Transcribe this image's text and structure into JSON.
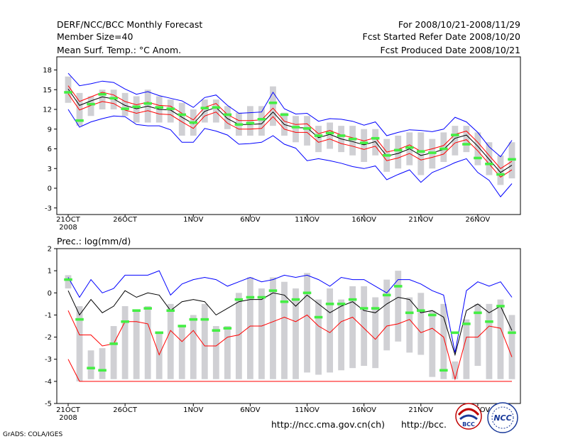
{
  "header": {
    "title": "DERF/NCC/BCC Monthly Forecast",
    "member_size": "Member Size=40",
    "variable": "Mean Surf. Temp.: °C Anom.",
    "forecast_range": "For 2008/10/21-2008/11/29",
    "started_refer_date": "Fcst Started Refer Date 2008/10/20",
    "produced_date": "Fcst Produced Date 2008/10/21"
  },
  "footer": {
    "grads_credit": "GrADS: COLA/IGES",
    "url_ncc": "http://ncc.cma.gov.cn(ch)",
    "url_bcc": "http://bcc.",
    "logo_bcc": "BCC",
    "logo_ncc": "NCC"
  },
  "colors": {
    "ensemble_range": "#0000ff",
    "mean": "#000000",
    "spread": "#ff0000",
    "box": "#d0d0d4",
    "observed": "#44ee44"
  },
  "x_tick_labels": [
    "21OCT",
    "26OCT",
    "1NOV",
    "6NOV",
    "11NOV",
    "16NOV",
    "21NOV",
    "26NOV"
  ],
  "x_year_label": "2008",
  "chart_data": [
    {
      "type": "line",
      "title": "Mean Surf. Temp.: °C Anom.",
      "ylabel": "°C Anom.",
      "ylim": [
        -4,
        20
      ],
      "yticks": [
        -3,
        0,
        3,
        6,
        9,
        12,
        15,
        18
      ],
      "x": [
        "10/21",
        "10/22",
        "10/23",
        "10/24",
        "10/25",
        "10/26",
        "10/27",
        "10/28",
        "10/29",
        "10/30",
        "10/31",
        "11/1",
        "11/2",
        "11/3",
        "11/4",
        "11/5",
        "11/6",
        "11/7",
        "11/8",
        "11/9",
        "11/10",
        "11/11",
        "11/12",
        "11/13",
        "11/14",
        "11/15",
        "11/16",
        "11/17",
        "11/18",
        "11/19",
        "11/20",
        "11/21",
        "11/22",
        "11/23",
        "11/24",
        "11/25",
        "11/26",
        "11/27",
        "11/28",
        "11/29"
      ],
      "series": [
        {
          "name": "ensemble max",
          "color": "#0000ff",
          "values": [
            17.5,
            15.6,
            15.9,
            16.3,
            16.1,
            15.1,
            14.3,
            14.7,
            14.1,
            13.7,
            13.3,
            12.3,
            13.8,
            14.2,
            12.6,
            11.4,
            11.5,
            11.6,
            14.6,
            12.1,
            11.3,
            11.4,
            10.2,
            10.6,
            10.5,
            10.2,
            9.6,
            10.1,
            8.0,
            8.5,
            8.9,
            8.8,
            8.6,
            9.0,
            10.8,
            10.1,
            8.5,
            6.3,
            4.8,
            7.3
          ]
        },
        {
          "name": "mean + spread",
          "color": "#ff0000",
          "values": [
            15.6,
            13.2,
            13.9,
            14.6,
            14.2,
            13.2,
            12.7,
            13.1,
            12.6,
            12.5,
            11.4,
            10.4,
            12.3,
            12.9,
            11.2,
            10.3,
            10.3,
            10.4,
            12.2,
            10.2,
            9.7,
            9.8,
            8.3,
            8.8,
            8.1,
            7.7,
            7.2,
            7.7,
            5.5,
            5.9,
            6.6,
            5.6,
            6.0,
            6.5,
            8.2,
            8.7,
            7.0,
            5.0,
            3.0,
            4.1
          ]
        },
        {
          "name": "ensemble mean",
          "color": "#000000",
          "values": [
            15.1,
            12.6,
            13.3,
            13.9,
            13.6,
            12.6,
            12.1,
            12.5,
            12.0,
            11.9,
            10.8,
            9.8,
            11.7,
            12.3,
            10.6,
            9.7,
            9.7,
            9.8,
            11.6,
            9.7,
            9.2,
            9.2,
            7.7,
            8.2,
            7.5,
            7.1,
            6.6,
            7.1,
            4.9,
            5.3,
            6.0,
            5.0,
            5.4,
            5.9,
            7.6,
            8.1,
            6.4,
            4.4,
            2.4,
            3.5
          ]
        },
        {
          "name": "mean - spread",
          "color": "#ff0000",
          "values": [
            14.4,
            11.9,
            12.6,
            13.2,
            12.9,
            11.9,
            11.4,
            11.8,
            11.3,
            11.2,
            10.1,
            9.1,
            11.0,
            11.6,
            9.9,
            9.0,
            9.0,
            9.1,
            10.9,
            9.0,
            8.5,
            8.5,
            7.0,
            7.5,
            6.8,
            6.4,
            5.9,
            6.4,
            4.2,
            4.6,
            5.3,
            4.3,
            4.7,
            5.2,
            6.9,
            7.4,
            5.7,
            3.7,
            1.7,
            2.8
          ]
        },
        {
          "name": "ensemble min",
          "color": "#0000ff",
          "values": [
            12.0,
            9.3,
            10.1,
            10.6,
            11.0,
            10.9,
            9.7,
            9.5,
            9.5,
            8.9,
            7.0,
            7.0,
            9.1,
            8.7,
            8.1,
            6.7,
            6.8,
            7.0,
            8.0,
            6.7,
            6.1,
            4.2,
            4.5,
            4.2,
            3.8,
            3.3,
            3.0,
            3.4,
            1.3,
            2.1,
            2.8,
            0.9,
            2.4,
            3.1,
            3.9,
            4.5,
            2.4,
            1.2,
            -1.3,
            0.7
          ]
        }
      ],
      "boxes": [
        {
          "low": 13.0,
          "high": 17.0
        },
        {
          "low": 9.5,
          "high": 14.5
        },
        {
          "low": 11.0,
          "high": 14.0
        },
        {
          "low": 12.0,
          "high": 15.0
        },
        {
          "low": 12.0,
          "high": 15.0
        },
        {
          "low": 11.0,
          "high": 14.5
        },
        {
          "low": 10.0,
          "high": 14.0
        },
        {
          "low": 10.0,
          "high": 15.0
        },
        {
          "low": 10.0,
          "high": 14.0
        },
        {
          "low": 10.0,
          "high": 13.5
        },
        {
          "low": 8.0,
          "high": 13.0
        },
        {
          "low": 8.0,
          "high": 12.0
        },
        {
          "low": 10.0,
          "high": 13.5
        },
        {
          "low": 10.0,
          "high": 13.5
        },
        {
          "low": 9.0,
          "high": 12.5
        },
        {
          "low": 8.0,
          "high": 11.5
        },
        {
          "low": 8.0,
          "high": 12.5
        },
        {
          "low": 8.0,
          "high": 12.5
        },
        {
          "low": 9.5,
          "high": 15.5
        },
        {
          "low": 8.0,
          "high": 11.5
        },
        {
          "low": 7.0,
          "high": 11.0
        },
        {
          "low": 6.5,
          "high": 11.0
        },
        {
          "low": 5.5,
          "high": 9.5
        },
        {
          "low": 6.0,
          "high": 10.0
        },
        {
          "low": 5.5,
          "high": 9.5
        },
        {
          "low": 5.0,
          "high": 9.5
        },
        {
          "low": 4.0,
          "high": 9.0
        },
        {
          "low": 5.0,
          "high": 9.0
        },
        {
          "low": 2.5,
          "high": 7.5
        },
        {
          "low": 3.0,
          "high": 8.0
        },
        {
          "low": 3.5,
          "high": 8.5
        },
        {
          "low": 2.0,
          "high": 8.5
        },
        {
          "low": 3.0,
          "high": 7.5
        },
        {
          "low": 4.0,
          "high": 8.5
        },
        {
          "low": 5.0,
          "high": 9.5
        },
        {
          "low": 5.5,
          "high": 9.5
        },
        {
          "low": 3.5,
          "high": 8.5
        },
        {
          "low": 2.0,
          "high": 7.0
        },
        {
          "low": 0.5,
          "high": 5.0
        },
        {
          "low": 1.5,
          "high": 7.0
        }
      ],
      "observed": [
        14.6,
        10.3,
        12.8,
        14.3,
        13.7,
        12.1,
        12.4,
        12.9,
        12.3,
        12.1,
        11.2,
        10.0,
        12.2,
        12.3,
        11.2,
        9.7,
        9.9,
        10.5,
        13.0,
        11.2,
        9.3,
        9.1,
        8.0,
        8.4,
        8.0,
        7.5,
        6.9,
        7.6,
        5.0,
        5.8,
        6.2,
        5.6,
        5.4,
        6.0,
        8.1,
        6.7,
        4.6,
        3.7,
        2.1,
        4.4
      ]
    },
    {
      "type": "line",
      "title": "Prec.: log(mm/d)",
      "ylabel": "log(mm/d)",
      "ylim": [
        -5,
        2
      ],
      "yticks": [
        -5,
        -4,
        -3,
        -2,
        -1,
        0,
        1,
        2
      ],
      "x": [
        "10/21",
        "10/22",
        "10/23",
        "10/24",
        "10/25",
        "10/26",
        "10/27",
        "10/28",
        "10/29",
        "10/30",
        "10/31",
        "11/1",
        "11/2",
        "11/3",
        "11/4",
        "11/5",
        "11/6",
        "11/7",
        "11/8",
        "11/9",
        "11/10",
        "11/11",
        "11/12",
        "11/13",
        "11/14",
        "11/15",
        "11/16",
        "11/17",
        "11/18",
        "11/19",
        "11/20",
        "11/21",
        "11/22",
        "11/23",
        "11/24",
        "11/25",
        "11/26",
        "11/27",
        "11/28",
        "11/29"
      ],
      "series": [
        {
          "name": "ensemble max",
          "color": "#0000ff",
          "values": [
            0.7,
            -0.2,
            0.6,
            0.0,
            0.2,
            0.8,
            0.8,
            0.8,
            1.0,
            -0.1,
            0.4,
            0.6,
            0.7,
            0.6,
            0.3,
            0.5,
            0.7,
            0.5,
            0.6,
            0.8,
            0.7,
            0.8,
            0.6,
            0.3,
            0.7,
            0.6,
            0.6,
            0.3,
            0.0,
            0.6,
            0.6,
            0.4,
            0.1,
            -0.1,
            -2.7,
            0.1,
            0.5,
            0.3,
            0.5,
            -0.2
          ]
        },
        {
          "name": "ensemble mean",
          "color": "#000000",
          "values": [
            0.1,
            -1.0,
            -0.3,
            -0.9,
            -0.6,
            0.1,
            -0.2,
            0.0,
            -0.1,
            -0.8,
            -0.4,
            -0.3,
            -0.4,
            -1.0,
            -0.7,
            -0.4,
            -0.3,
            -0.3,
            0.0,
            -0.1,
            -0.6,
            -0.1,
            -0.5,
            -0.9,
            -0.6,
            -0.4,
            -0.8,
            -0.9,
            -0.5,
            -0.2,
            -0.3,
            -0.9,
            -0.8,
            -1.1,
            -2.8,
            -0.8,
            -0.5,
            -0.9,
            -0.6,
            -1.7
          ]
        },
        {
          "name": "mean - spread",
          "color": "#ff0000",
          "values": [
            -0.8,
            -1.9,
            -1.9,
            -2.4,
            -2.3,
            -1.3,
            -1.3,
            -1.4,
            -2.8,
            -1.7,
            -2.2,
            -1.7,
            -2.4,
            -2.4,
            -2.0,
            -1.9,
            -1.5,
            -1.5,
            -1.3,
            -1.1,
            -1.3,
            -1.0,
            -1.5,
            -1.8,
            -1.3,
            -1.1,
            -1.6,
            -2.1,
            -1.5,
            -1.4,
            -1.2,
            -1.8,
            -1.6,
            -2.0,
            -3.9,
            -2.0,
            -2.0,
            -1.5,
            -1.6,
            -2.9
          ]
        },
        {
          "name": "ensemble min",
          "color": "#ff0000",
          "values": [
            -3.0,
            -4.0,
            -4.0,
            -4.0,
            -4.0,
            -4.0,
            -4.0,
            -4.0,
            -4.0,
            -4.0,
            -4.0,
            -4.0,
            -4.0,
            -4.0,
            -4.0,
            -4.0,
            -4.0,
            -4.0,
            -4.0,
            -4.0,
            -4.0,
            -4.0,
            -4.0,
            -4.0,
            -4.0,
            -4.0,
            -4.0,
            -4.0,
            -4.0,
            -4.0,
            -4.0,
            -4.0,
            -4.0,
            -4.0,
            -4.0,
            -4.0,
            -4.0,
            -4.0,
            -4.0,
            -4.0
          ]
        }
      ],
      "boxes": [
        {
          "low": 0.2,
          "high": 0.8
        },
        {
          "low": -4.0,
          "high": -0.6
        },
        {
          "low": -3.9,
          "high": -2.6
        },
        {
          "low": -3.9,
          "high": -2.5
        },
        {
          "low": -3.9,
          "high": -1.5
        },
        {
          "low": -3.9,
          "high": -0.6
        },
        {
          "low": -3.9,
          "high": -0.8
        },
        {
          "low": -3.9,
          "high": -0.6
        },
        {
          "low": -3.9,
          "high": -1.8
        },
        {
          "low": -3.9,
          "high": -0.5
        },
        {
          "low": -3.9,
          "high": -1.5
        },
        {
          "low": -3.9,
          "high": -1.0
        },
        {
          "low": -3.9,
          "high": -0.5
        },
        {
          "low": -3.9,
          "high": -1.5
        },
        {
          "low": -3.9,
          "high": -1.5
        },
        {
          "low": -3.9,
          "high": 0.0
        },
        {
          "low": -3.9,
          "high": 0.7
        },
        {
          "low": -3.9,
          "high": 0.2
        },
        {
          "low": -3.9,
          "high": 0.7
        },
        {
          "low": -3.9,
          "high": 0.5
        },
        {
          "low": -3.9,
          "high": 0.2
        },
        {
          "low": -3.6,
          "high": 0.9
        },
        {
          "low": -3.7,
          "high": -0.3
        },
        {
          "low": -3.6,
          "high": 0.2
        },
        {
          "low": -3.5,
          "high": -0.3
        },
        {
          "low": -3.4,
          "high": 0.3
        },
        {
          "low": -3.3,
          "high": 0.3
        },
        {
          "low": -3.4,
          "high": -0.2
        },
        {
          "low": -2.6,
          "high": 0.6
        },
        {
          "low": -2.2,
          "high": 1.0
        },
        {
          "low": -2.7,
          "high": -0.2
        },
        {
          "low": -2.8,
          "high": 0.0
        },
        {
          "low": -3.8,
          "high": -0.8
        },
        {
          "low": -3.9,
          "high": -0.5
        },
        {
          "low": -3.9,
          "high": -3.1
        },
        {
          "low": -3.9,
          "high": -1.2
        },
        {
          "low": -3.3,
          "high": -0.5
        },
        {
          "low": -3.9,
          "high": -0.5
        },
        {
          "low": -3.9,
          "high": -0.3
        },
        {
          "low": -3.9,
          "high": -1.0
        }
      ],
      "observed": [
        0.6,
        -1.2,
        -3.4,
        -3.5,
        -2.3,
        -1.3,
        -0.8,
        -0.7,
        -1.8,
        -0.8,
        -1.5,
        -1.2,
        -1.2,
        -1.7,
        -1.6,
        -0.3,
        -0.2,
        -0.2,
        0.1,
        -0.4,
        -0.3,
        0.0,
        -1.1,
        -0.5,
        -0.5,
        -0.3,
        -0.7,
        -0.7,
        -0.1,
        0.3,
        -0.9,
        -0.8,
        -1.0,
        -3.5,
        -1.8,
        -1.4,
        -0.9,
        -1.3,
        -0.6,
        -1.8
      ]
    }
  ]
}
